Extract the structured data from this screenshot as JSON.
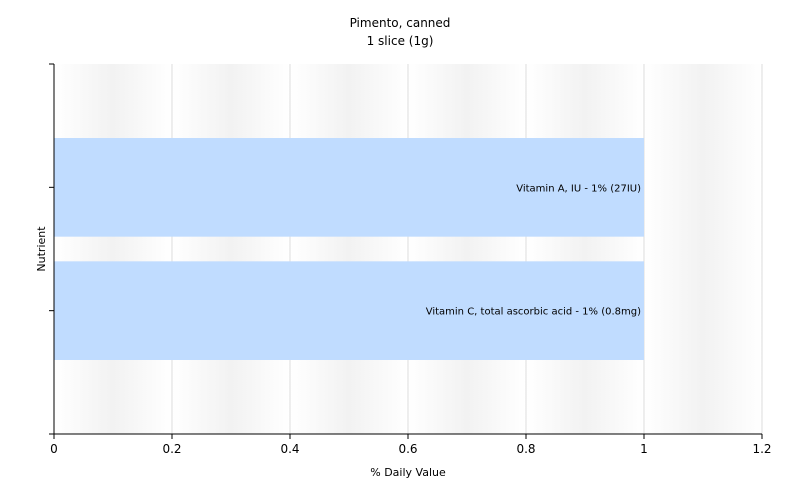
{
  "chart_data": {
    "type": "bar",
    "orientation": "horizontal",
    "title": "Pimento, canned",
    "subtitle": "1 slice (1g)",
    "xlabel": "% Daily Value",
    "ylabel": "Nutrient",
    "xlim": [
      0,
      1.2
    ],
    "xticks": [
      "0",
      "0.2",
      "0.4",
      "0.6",
      "0.8",
      "1",
      "1.2"
    ],
    "tick_values": [
      0,
      0.2,
      0.4,
      0.6,
      0.8,
      1,
      1.2
    ],
    "grid": true,
    "categories": [
      "Vitamin A, IU",
      "Vitamin C, total ascorbic acid"
    ],
    "values": [
      1,
      1
    ],
    "labels": [
      "Vitamin A, IU - 1% (27IU)",
      "Vitamin C, total ascorbic acid - 1% (0.8mg)"
    ],
    "colors": {
      "bar": "#c0dcff",
      "axis": "#000000",
      "grid": "#dcdcdc",
      "band_light": "#ffffff",
      "band_dark": "#f2f2f2"
    }
  }
}
